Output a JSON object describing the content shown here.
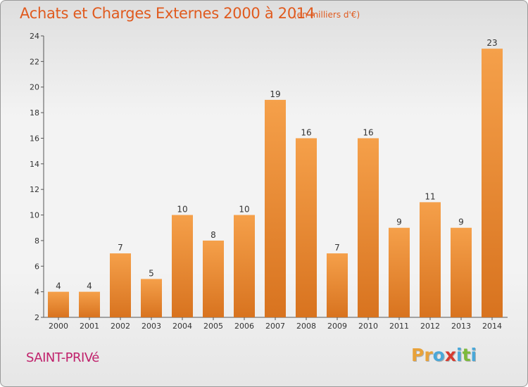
{
  "chart_data": {
    "type": "bar",
    "title": "Achats et Charges Externes 2000 à 2014",
    "unit_label": "(en milliers d'€)",
    "categories": [
      "2000",
      "2001",
      "2002",
      "2003",
      "2004",
      "2005",
      "2006",
      "2007",
      "2008",
      "2009",
      "2010",
      "2011",
      "2012",
      "2013",
      "2014"
    ],
    "values": [
      4,
      4,
      7,
      5,
      10,
      8,
      10,
      19,
      16,
      7,
      16,
      9,
      11,
      9,
      23
    ],
    "ylim": [
      2,
      24
    ],
    "yticks": [
      2,
      4,
      6,
      8,
      10,
      12,
      14,
      16,
      18,
      20,
      22,
      24
    ],
    "grid": false,
    "bar_color_top": "#f5a04a",
    "bar_color_bottom": "#d8731f"
  },
  "commune": "SAINT-PRIVé",
  "logo": {
    "letters": [
      "P",
      "r",
      "o",
      "x",
      "i",
      "t",
      "i"
    ],
    "colors": [
      "#e8a23a",
      "#e8a23a",
      "#4aa8d8",
      "#d63b2f",
      "#4aa8d8",
      "#7cba3a",
      "#4aa8d8"
    ]
  },
  "colors": {
    "title": "#e05a1e",
    "commune": "#c0226c"
  }
}
